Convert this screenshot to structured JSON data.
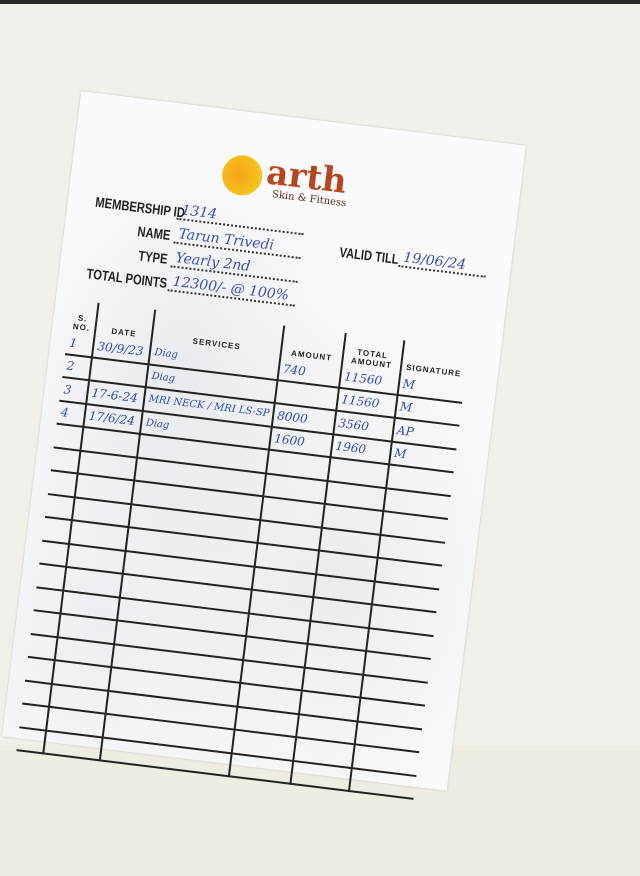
{
  "brand": {
    "name": "arth",
    "tagline": "Skin & Fitness",
    "accent": "#b8461c"
  },
  "fields": {
    "membership_id": {
      "label": "MEMBERSHIP ID",
      "value": "1314"
    },
    "name": {
      "label": "NAME",
      "value": "Tarun Trivedi"
    },
    "type": {
      "label": "TYPE",
      "value": "Yearly 2nd"
    },
    "total_points": {
      "label": "TOTAL POINTS",
      "value": "12300/- @ 100%"
    },
    "valid_till": {
      "label": "VALID TILL",
      "value": "19/06/24"
    }
  },
  "table": {
    "headers": [
      "S. NO.",
      "DATE",
      "SERVICES",
      "AMOUNT",
      "TOTAL AMOUNT",
      "SIGNATURE"
    ],
    "rows": [
      [
        "1",
        "30/9/23",
        "Diag",
        "740",
        "11560",
        "M"
      ],
      [
        "2",
        "",
        "Diag",
        "",
        "11560",
        "M"
      ],
      [
        "3",
        "17-6-24",
        "MRI NECK / MRI LS-SP",
        "8000",
        "3560",
        "AP"
      ],
      [
        "4",
        "17/6/24",
        "Diag",
        "1600",
        "1960",
        "M"
      ]
    ]
  }
}
